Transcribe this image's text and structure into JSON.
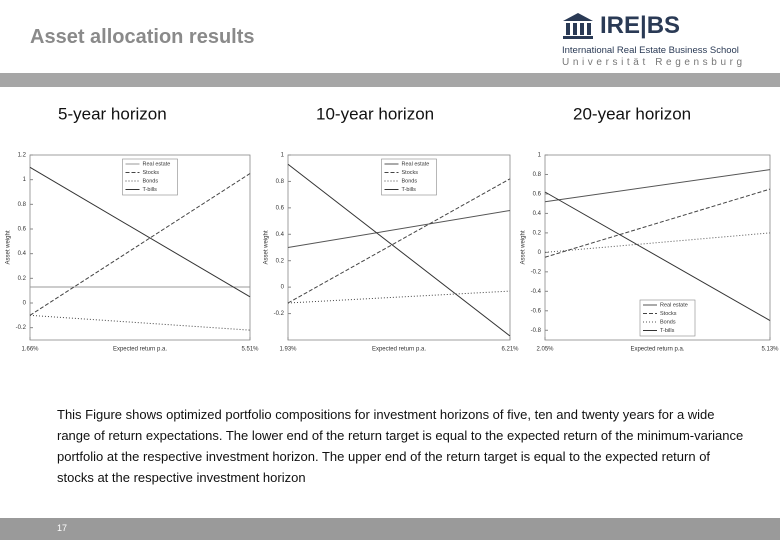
{
  "header": {
    "title": "Asset allocation results",
    "logo": {
      "name": "IRE|BS",
      "subtitle": "International Real Estate Business School",
      "university": "Universität Regensburg"
    }
  },
  "chart_data": [
    {
      "type": "line",
      "title": "5-year horizon",
      "x_label": "Expected return p.a.",
      "y_label": "Asset weight",
      "x": [
        1.66,
        5.51
      ],
      "xlim": [
        1.66,
        5.51
      ],
      "xticks": [
        {
          "value": 1.66,
          "label": "1.66%"
        },
        {
          "value": 5.51,
          "label": "5.51%"
        }
      ],
      "ylim": [
        -0.3,
        1.2
      ],
      "yticks": [
        -0.2,
        0,
        0.2,
        0.4,
        0.6,
        0.8,
        1,
        1.2
      ],
      "legend": "upper center",
      "series": [
        {
          "name": "Real estate",
          "color": "#999999",
          "style": "solid",
          "values": [
            0.13,
            0.13
          ]
        },
        {
          "name": "Stocks",
          "color": "#444444",
          "style": "dashed",
          "values": [
            -0.1,
            1.05
          ]
        },
        {
          "name": "Bonds",
          "color": "#444444",
          "style": "dotted",
          "values": [
            -0.1,
            -0.22
          ]
        },
        {
          "name": "T-bills",
          "color": "#333333",
          "style": "plus",
          "values": [
            1.1,
            0.05
          ]
        }
      ]
    },
    {
      "type": "line",
      "title": "10-year horizon",
      "x_label": "Expected return p.a.",
      "y_label": "Asset weight",
      "x": [
        1.93,
        6.21
      ],
      "xlim": [
        1.93,
        6.21
      ],
      "xticks": [
        {
          "value": 1.93,
          "label": "1.93%"
        },
        {
          "value": 6.21,
          "label": "6.21%"
        }
      ],
      "ylim": [
        -0.4,
        1
      ],
      "yticks": [
        -0.2,
        0,
        0.2,
        0.4,
        0.6,
        0.8,
        1
      ],
      "legend": "upper center",
      "series": [
        {
          "name": "Real estate",
          "color": "#555555",
          "style": "solid",
          "values": [
            0.3,
            0.58
          ]
        },
        {
          "name": "Stocks",
          "color": "#444444",
          "style": "dashed",
          "values": [
            -0.12,
            0.82
          ]
        },
        {
          "name": "Bonds",
          "color": "#444444",
          "style": "dotted",
          "values": [
            -0.12,
            -0.03
          ]
        },
        {
          "name": "T-bills",
          "color": "#333333",
          "style": "plus",
          "values": [
            0.93,
            -0.37
          ]
        }
      ]
    },
    {
      "type": "line",
      "title": "20-year horizon",
      "x_label": "Expected return p.a.",
      "y_label": "Asset weight",
      "x": [
        2.05,
        5.13
      ],
      "xlim": [
        2.05,
        5.13
      ],
      "xticks": [
        {
          "value": 2.05,
          "label": "2.05%"
        },
        {
          "value": 5.13,
          "label": "5.13%"
        }
      ],
      "ylim": [
        -0.9,
        1
      ],
      "yticks": [
        -0.8,
        -0.6,
        -0.4,
        -0.2,
        0,
        0.2,
        0.4,
        0.6,
        0.8,
        1
      ],
      "legend": "lower center",
      "series": [
        {
          "name": "Real estate",
          "color": "#555555",
          "style": "solid",
          "values": [
            0.52,
            0.85
          ]
        },
        {
          "name": "Stocks",
          "color": "#444444",
          "style": "dashed",
          "values": [
            -0.05,
            0.65
          ]
        },
        {
          "name": "Bonds",
          "color": "#555555",
          "style": "dotted",
          "values": [
            0,
            0.2
          ]
        },
        {
          "name": "T-bills",
          "color": "#333333",
          "style": "plus",
          "values": [
            0.62,
            -0.7
          ]
        }
      ]
    }
  ],
  "caption": "This Figure shows optimized portfolio compositions for investment horizons of five, ten and twenty years for a wide range of return expectations. The lower end of the return target is equal to the expected return of the minimum-variance portfolio at the respective investment horizon. The upper end of the return target is equal to the expected return of stocks at the respective investment horizon",
  "page_number": "17"
}
